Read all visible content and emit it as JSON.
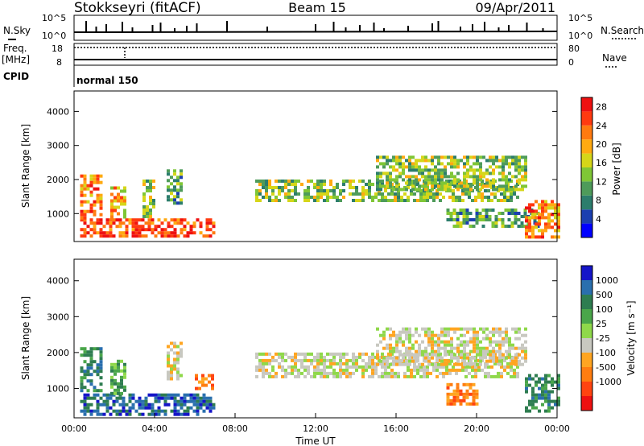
{
  "header": {
    "station": "Stokkseyri (fitACF)",
    "beam": "Beam 15",
    "date": "09/Apr/2011"
  },
  "chart_data": [
    {
      "type": "line",
      "panel": "noise-search",
      "left_label": "N.Sky",
      "right_label": "N.Search",
      "left_ticks": [
        "10^5",
        "10^0"
      ],
      "right_ticks": [
        "10^5",
        "10^0"
      ],
      "spike_hours": [
        0.6,
        1.1,
        1.6,
        2.4,
        2.9,
        3.9,
        4.3,
        5.0,
        5.6,
        6.1,
        7.6,
        9.6,
        12.0,
        12.9,
        13.5,
        14.2,
        14.9,
        15.4,
        16.6,
        17.8,
        18.1,
        19.2,
        19.8,
        20.4,
        21.1,
        21.6,
        22.5,
        23.3
      ]
    },
    {
      "type": "line",
      "panel": "freq-nave",
      "left_label": "Freq.",
      "left_unit": "[MHz]",
      "right_label": "Nave",
      "left_ticks": [
        "18",
        "8"
      ],
      "right_ticks": [
        "80",
        "0"
      ]
    },
    {
      "type": "table",
      "panel": "cpid",
      "label": "CPID",
      "program": "normal 150"
    },
    {
      "type": "heatmap",
      "panel": "power",
      "xlabel": "",
      "ylabel": "Slant Range [km]",
      "xlim": [
        0,
        24
      ],
      "ylim": [
        180,
        4600
      ],
      "y_ticks": [
        1000,
        2000,
        3000,
        4000
      ],
      "colorbar": {
        "label": "Power [dB]",
        "ticks": [
          4,
          8,
          12,
          16,
          20,
          24,
          28
        ],
        "range": [
          0,
          30
        ],
        "colors": [
          "#0000ff",
          "#1b3fb0",
          "#2c7d6c",
          "#4e9b5a",
          "#7fc636",
          "#d6d619",
          "#ffaa11",
          "#ff7a10",
          "#ff3a10",
          "#ee1111"
        ]
      },
      "regions": [
        {
          "t0": 0.3,
          "t1": 6.9,
          "r0": 300,
          "r1": 860,
          "p": 24
        },
        {
          "t0": 0.3,
          "t1": 1.3,
          "r0": 900,
          "r1": 2150,
          "p": 20
        },
        {
          "t0": 1.8,
          "t1": 2.6,
          "r0": 900,
          "r1": 1800,
          "p": 18
        },
        {
          "t0": 3.4,
          "t1": 4.0,
          "r0": 900,
          "r1": 2000,
          "p": 12
        },
        {
          "t0": 4.6,
          "t1": 5.3,
          "r0": 1300,
          "r1": 2300,
          "p": 8
        },
        {
          "t0": 9.0,
          "t1": 22.0,
          "r0": 1350,
          "r1": 2000,
          "p": 13
        },
        {
          "t0": 15.0,
          "t1": 22.5,
          "r0": 1700,
          "r1": 2700,
          "p": 11
        },
        {
          "t0": 18.5,
          "t1": 23.0,
          "r0": 600,
          "r1": 1150,
          "p": 8
        },
        {
          "t0": 22.4,
          "t1": 24.0,
          "r0": 350,
          "r1": 1400,
          "p": 22
        }
      ]
    },
    {
      "type": "heatmap",
      "panel": "velocity",
      "xlabel": "Time UT",
      "ylabel": "Slant Range [km]",
      "xlim": [
        0,
        24
      ],
      "ylim": [
        180,
        4600
      ],
      "x_ticks": [
        "00:00",
        "04:00",
        "08:00",
        "12:00",
        "16:00",
        "20:00",
        "00:00"
      ],
      "y_ticks": [
        1000,
        2000,
        3000,
        4000
      ],
      "colorbar": {
        "label": "Velocity [m s⁻¹]",
        "ticks": [
          "1000",
          "500",
          "100",
          "25",
          "-25",
          "-100",
          "-500",
          "-1000"
        ],
        "colors": [
          "#1515c8",
          "#2a6fae",
          "#2e7d50",
          "#4aa64a",
          "#8fd84a",
          "#c8c8c0",
          "#ffa521",
          "#ff7d10",
          "#ff4410",
          "#ee1111"
        ]
      },
      "regions": [
        {
          "t0": 0.3,
          "t1": 6.9,
          "r0": 300,
          "r1": 860,
          "v": 1
        },
        {
          "t0": 0.3,
          "t1": 1.3,
          "r0": 900,
          "r1": 2150,
          "v": 2
        },
        {
          "t0": 1.8,
          "t1": 2.6,
          "r0": 900,
          "r1": 1800,
          "v": 3
        },
        {
          "t0": 4.6,
          "t1": 5.3,
          "r0": 1300,
          "r1": 2300,
          "v": 5
        },
        {
          "t0": 9.0,
          "t1": 22.0,
          "r0": 1350,
          "r1": 2000,
          "v": 5
        },
        {
          "t0": 15.0,
          "t1": 22.5,
          "r0": 1700,
          "r1": 2700,
          "v": 5
        },
        {
          "t0": 18.5,
          "t1": 20.0,
          "r0": 600,
          "r1": 1150,
          "v": 7
        },
        {
          "t0": 22.4,
          "t1": 24.0,
          "r0": 350,
          "r1": 1400,
          "v": 2
        },
        {
          "t0": 6.0,
          "t1": 6.9,
          "r0": 1000,
          "r1": 1400,
          "v": 7
        }
      ]
    }
  ]
}
